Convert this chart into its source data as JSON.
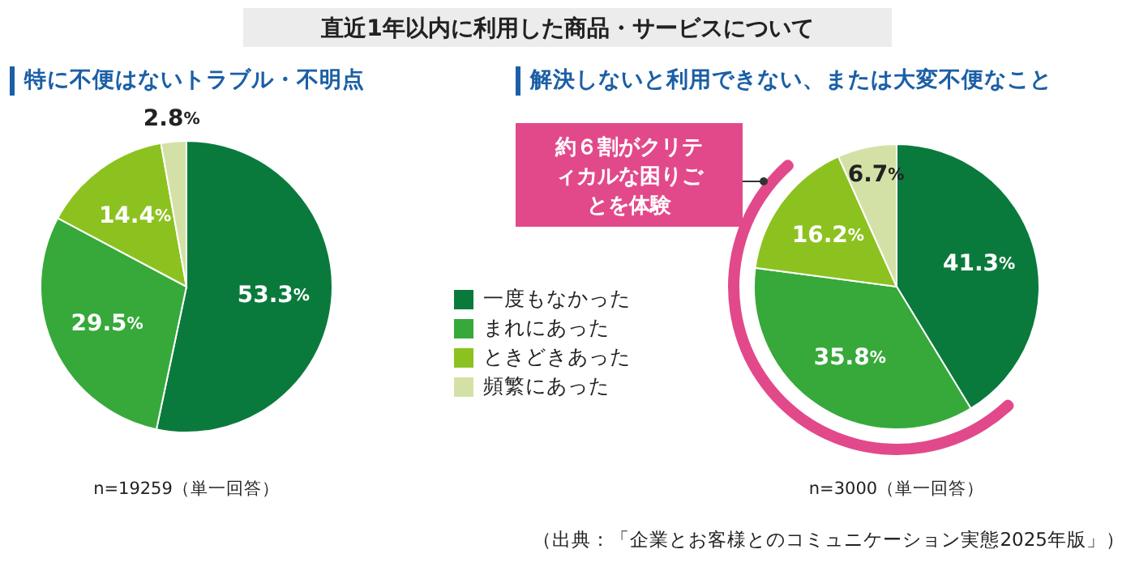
{
  "chart_data": [
    {
      "type": "pie",
      "title": "直近1年以内に利用した商品・サービスについて",
      "subtitle": "特に不便はないトラブル・不明点",
      "categories": [
        "一度もなかった",
        "まれにあった",
        "ときどきあった",
        "頻繁にあった"
      ],
      "values": [
        53.3,
        29.5,
        14.4,
        2.8
      ],
      "value_labels": [
        "53.3%",
        "29.5%",
        "14.4%",
        "2.8%"
      ],
      "colors": [
        "#0a7a3c",
        "#36a93a",
        "#8cc21f",
        "#d4e1a6"
      ],
      "legend": "right",
      "annotations": [
        "n=19259（単一回答）"
      ]
    },
    {
      "type": "pie",
      "title": "解決しないと利用できない、または大変不便なこと",
      "categories": [
        null,
        null,
        null,
        null
      ],
      "values": [
        41.3,
        35.8,
        16.2,
        6.7
      ],
      "value_labels": [
        "41.3%",
        "35.8%",
        "16.2%",
        "6.7%"
      ],
      "colors": [
        "#0a7a3c",
        "#36a93a",
        "#8cc21f",
        "#d4e1a6"
      ],
      "annotations": [
        "n=3000（単一回答）",
        "約６割がクリティカルな困りごとを体験",
        "（出典：「企業とお客様とのコミュニケーション実態2025年版」）"
      ]
    }
  ]
}
